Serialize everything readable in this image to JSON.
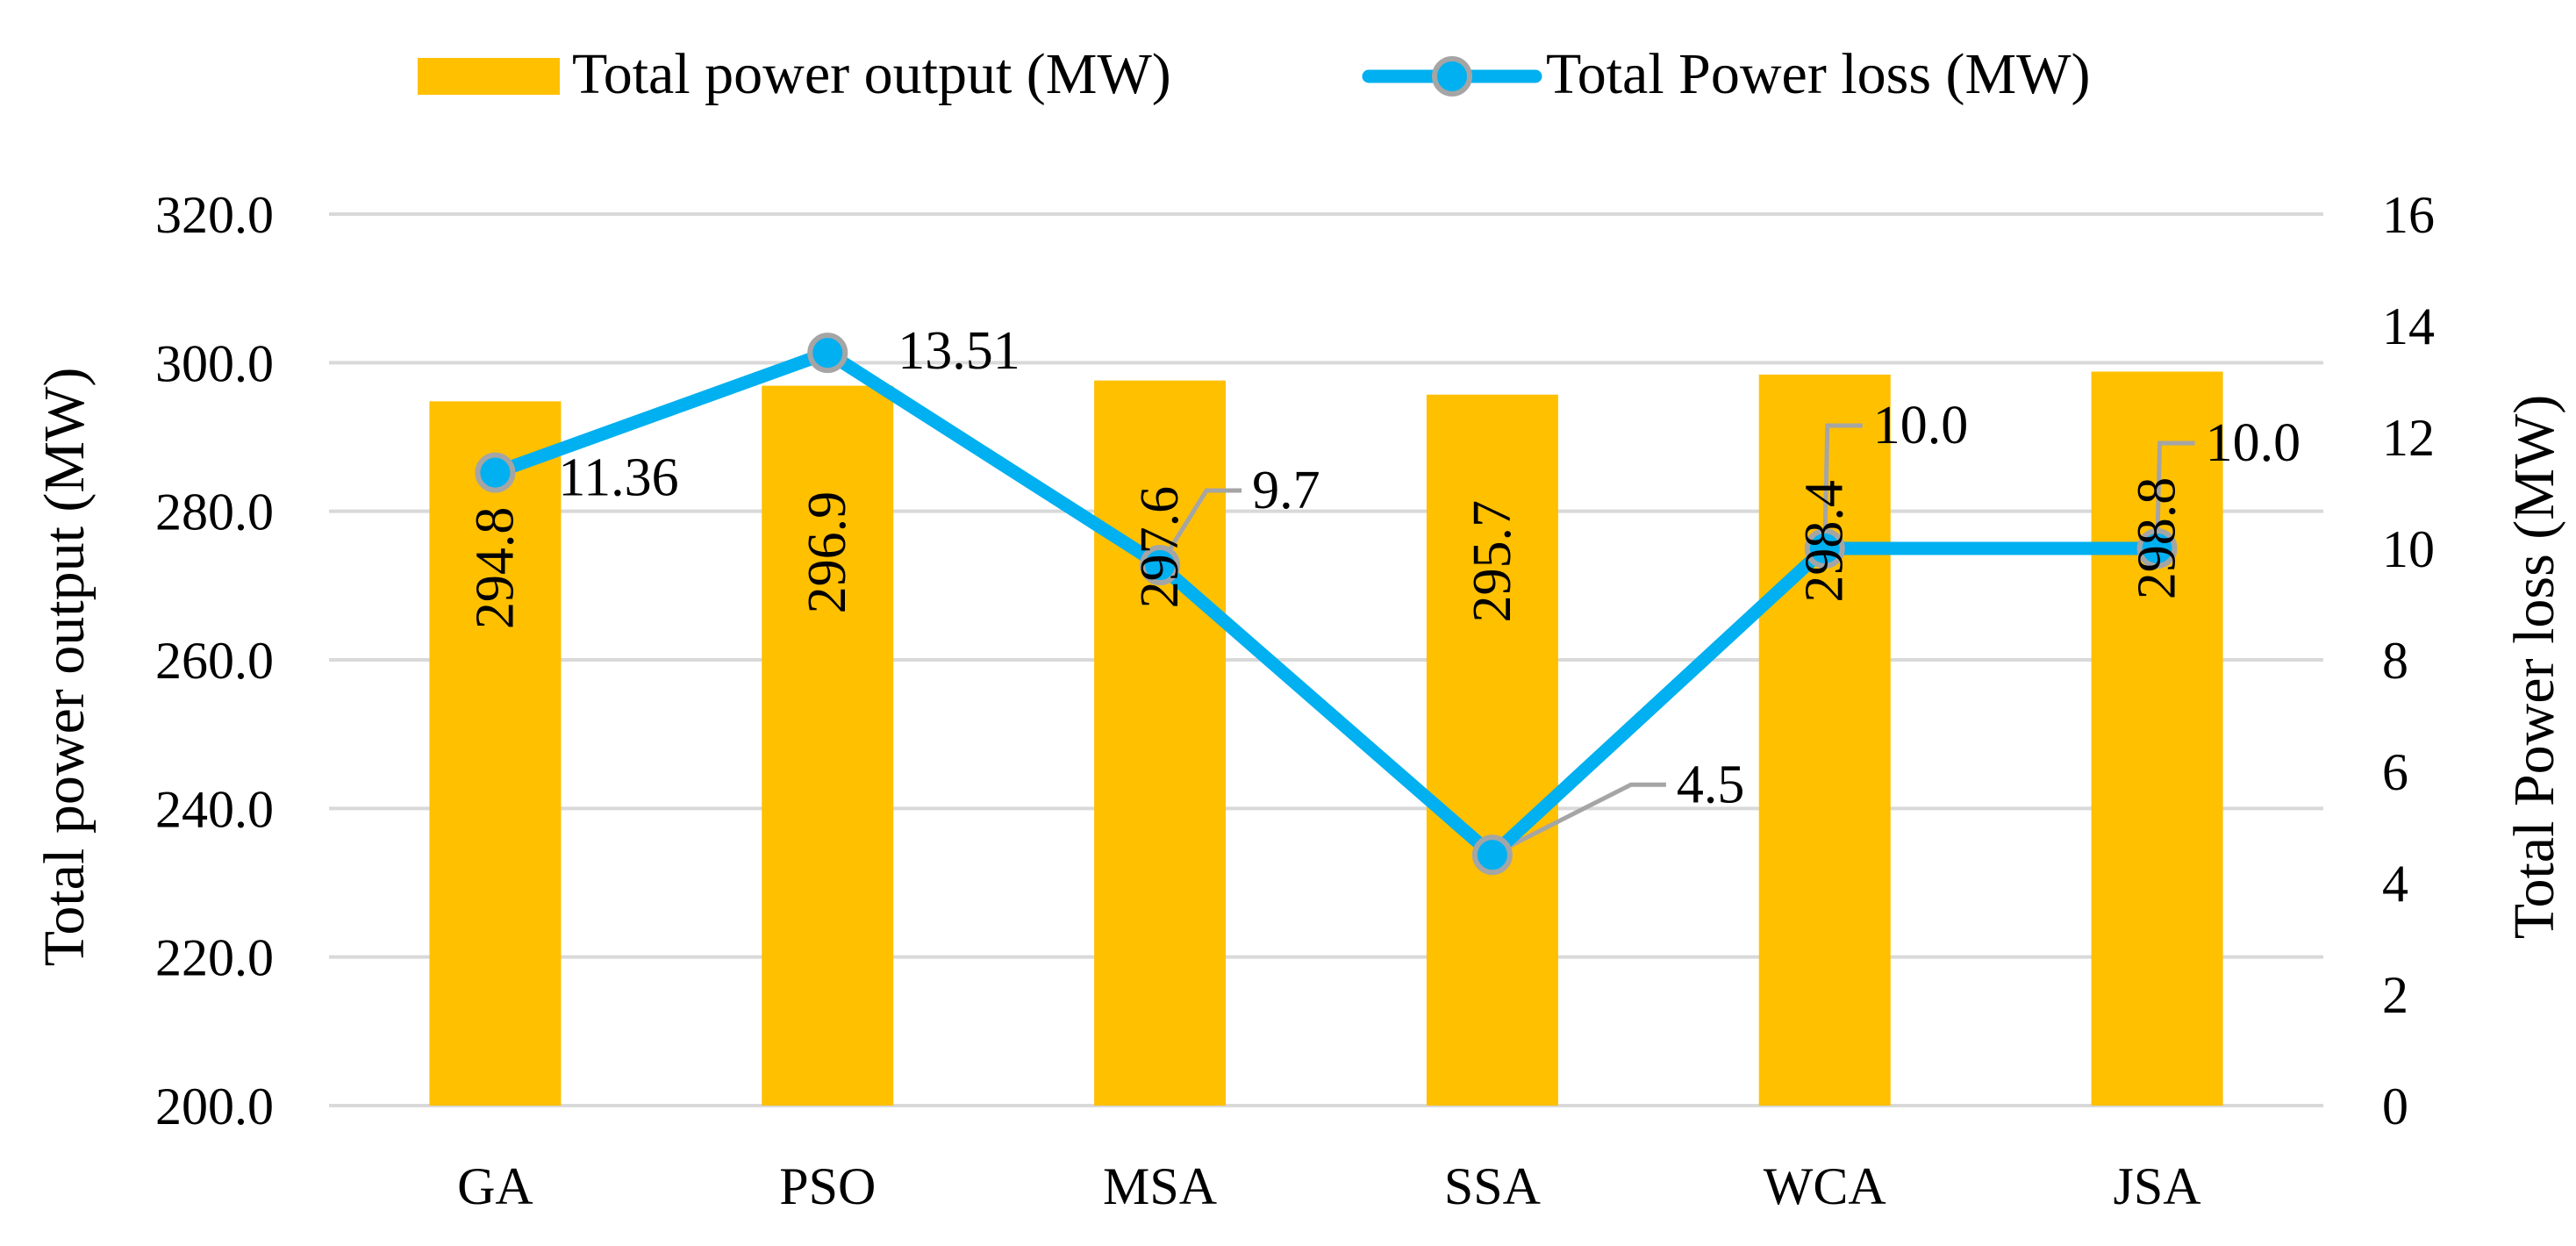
{
  "chart_data": {
    "type": "bar",
    "categories": [
      "GA",
      "PSO",
      "MSA",
      "SSA",
      "WCA",
      "JSA"
    ],
    "series": [
      {
        "name": "Total power output (MW)",
        "kind": "bar",
        "axis": "left",
        "values": [
          294.8,
          296.9,
          297.6,
          295.7,
          298.4,
          298.8
        ],
        "labels": [
          "294.8",
          "296.9",
          "297.6",
          "295.7",
          "298.4",
          "298.8"
        ]
      },
      {
        "name": "Total Power loss (MW)",
        "kind": "line",
        "axis": "right",
        "values": [
          11.36,
          13.51,
          9.7,
          4.5,
          10.0,
          10.0
        ],
        "labels": [
          "11.36",
          "13.51",
          "9.7",
          "4.5",
          "10.0",
          "10.0"
        ]
      }
    ],
    "y_left": {
      "label": "Total power output (MW)",
      "lim": [
        200,
        320
      ],
      "ticks": [
        "200.0",
        "220.0",
        "240.0",
        "260.0",
        "280.0",
        "300.0",
        "320.0"
      ]
    },
    "y_right": {
      "label": "Total Power loss (MW)",
      "lim": [
        0,
        16
      ],
      "ticks": [
        "0",
        "2",
        "4",
        "6",
        "8",
        "10",
        "12",
        "14",
        "16"
      ]
    },
    "legend": {
      "position": "top",
      "items": [
        "Total power output (MW)",
        "Total Power loss (MW)"
      ]
    },
    "grid": true
  },
  "colors": {
    "bar": "#FFC000",
    "line": "#00B0F0",
    "marker_edge": "#A5A5A5",
    "grid": "#D9D9D9",
    "leader": "#A5A5A5"
  }
}
